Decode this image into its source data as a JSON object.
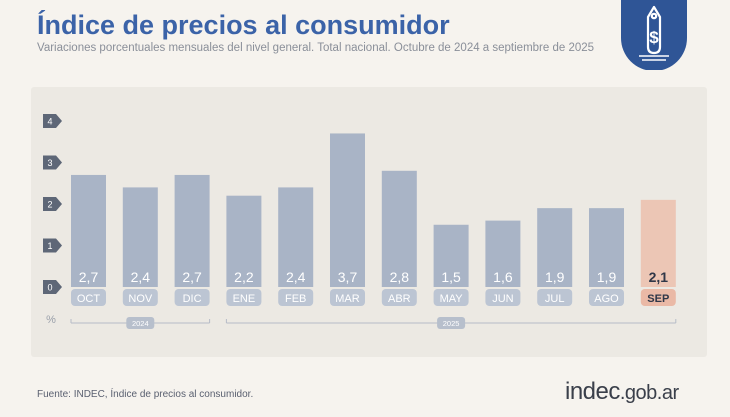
{
  "header": {
    "title": "Índice de precios al consumidor",
    "subtitle": "Variaciones porcentuales mensuales del nivel general. Total nacional. Octubre de 2024 a septiembre de 2025"
  },
  "badge": {
    "icon": "price-tag-dollar-icon",
    "color": "#2f5596",
    "symbol": "$"
  },
  "chart_data": {
    "type": "bar",
    "categories": [
      "OCT",
      "NOV",
      "DIC",
      "ENE",
      "FEB",
      "MAR",
      "ABR",
      "MAY",
      "JUN",
      "JUL",
      "AGO",
      "SEP"
    ],
    "values": [
      2.7,
      2.4,
      2.7,
      2.2,
      2.4,
      3.7,
      2.8,
      1.5,
      1.6,
      1.9,
      1.9,
      2.1
    ],
    "value_labels": [
      "2,7",
      "2,4",
      "2,7",
      "2,2",
      "2,4",
      "3,7",
      "2,8",
      "1,5",
      "1,6",
      "1,9",
      "1,9",
      "2,1"
    ],
    "ylim": [
      0,
      4
    ],
    "yticks": [
      "0",
      "1",
      "2",
      "3",
      "4"
    ],
    "unit_label": "%",
    "year_groups": [
      {
        "label": "2024",
        "start": 0,
        "end": 2
      },
      {
        "label": "2025",
        "start": 3,
        "end": 11
      }
    ],
    "highlight_index": 11,
    "colors": {
      "bar": "#a9b4c6",
      "highlight_bar": "#ecc6b5",
      "value_text": "#ffffff",
      "highlight_value_text": "#2f3748",
      "tick_label_bg": "#bcc5d3",
      "highlight_tick_bg": "#eab9a6",
      "marker": "#5e6777"
    }
  },
  "footer": {
    "source": "Fuente: INDEC, Índice de precios al consumidor.",
    "logo_main": "indec",
    "logo_domain": ".gob.ar"
  }
}
